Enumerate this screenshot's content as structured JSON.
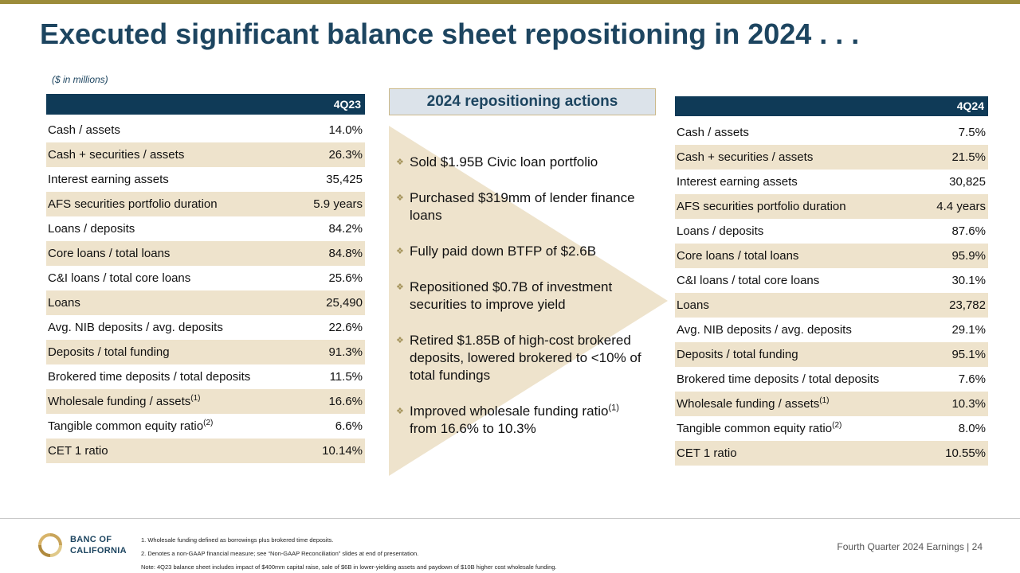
{
  "title": "Executed significant balance sheet repositioning in 2024 . . .",
  "units_note": "($ in millions)",
  "colors": {
    "header_navy": "#0F3A57",
    "row_shade": "#EEE3CC",
    "accent_gold": "#9C8C3A",
    "title_blue": "#1D4560"
  },
  "left_table": {
    "header": "4Q23",
    "rows": [
      {
        "label": "Cash / assets",
        "value": "14.0%"
      },
      {
        "label": "Cash + securities / assets",
        "value": "26.3%"
      },
      {
        "label": "Interest earning assets",
        "value": "35,425"
      },
      {
        "label": "AFS securities portfolio duration",
        "value": "5.9 years"
      },
      {
        "label": "Loans / deposits",
        "value": "84.2%"
      },
      {
        "label": "Core loans / total loans",
        "value": "84.8%"
      },
      {
        "label": "C&I loans / total core loans",
        "value": "25.6%"
      },
      {
        "label": "Loans",
        "value": "25,490"
      },
      {
        "label": "Avg. NIB deposits / avg. deposits",
        "value": "22.6%"
      },
      {
        "label": "Deposits / total funding",
        "value": "91.3%"
      },
      {
        "label": "Brokered time deposits / total deposits",
        "value": "11.5%"
      },
      {
        "label": "Wholesale funding / assets",
        "sup": "(1)",
        "value": "16.6%"
      },
      {
        "label": "Tangible common equity ratio",
        "sup": "(2)",
        "value": "6.6%"
      },
      {
        "label": "CET 1 ratio",
        "value": "10.14%"
      }
    ]
  },
  "right_table": {
    "header": "4Q24",
    "rows": [
      {
        "label": "Cash / assets",
        "value": "7.5%"
      },
      {
        "label": "Cash + securities / assets",
        "value": "21.5%"
      },
      {
        "label": "Interest earning assets",
        "value": "30,825"
      },
      {
        "label": "AFS securities portfolio duration",
        "value": "4.4 years"
      },
      {
        "label": "Loans / deposits",
        "value": "87.6%"
      },
      {
        "label": "Core loans / total loans",
        "value": "95.9%"
      },
      {
        "label": "C&I loans / total core loans",
        "value": "30.1%"
      },
      {
        "label": "Loans",
        "value": "23,782"
      },
      {
        "label": "Avg. NIB deposits / avg. deposits",
        "value": "29.1%"
      },
      {
        "label": "Deposits / total funding",
        "value": "95.1%"
      },
      {
        "label": "Brokered time deposits / total deposits",
        "value": "7.6%"
      },
      {
        "label": "Wholesale funding / assets",
        "sup": "(1)",
        "value": "10.3%"
      },
      {
        "label": "Tangible common equity ratio",
        "sup": "(2)",
        "value": "8.0%"
      },
      {
        "label": "CET 1 ratio",
        "value": "10.55%"
      }
    ]
  },
  "actions": {
    "heading": "2024 repositioning actions",
    "bullet_icon": "diamond-bullet-icon",
    "items": [
      {
        "text": "Sold $1.95B Civic loan portfolio"
      },
      {
        "text": "Purchased $319mm of lender finance loans"
      },
      {
        "text": "Fully paid down BTFP of $2.6B"
      },
      {
        "text": "Repositioned $0.7B of investment securities to improve yield"
      },
      {
        "text": "Retired $1.85B of high-cost brokered deposits, lowered brokered to <10% of total fundings"
      },
      {
        "text": "Improved wholesale funding ratio",
        "sup": "(1)",
        "text_after": "from 16.6% to 10.3%"
      }
    ]
  },
  "footer": {
    "logo_line1": "BANC OF",
    "logo_line2": "CALIFORNIA",
    "notes": [
      "1.  Wholesale funding defined as borrowings plus brokered time deposits.",
      "2.  Denotes a non-GAAP financial measure; see “Non-GAAP Reconciliation” slides at end of presentation.",
      "Note: 4Q23 balance sheet includes impact of $400mm capital raise, sale of $6B in lower-yielding assets and paydown of $10B higher cost wholesale funding."
    ],
    "page_label": "Fourth Quarter 2024 Earnings |",
    "page_number": "24"
  }
}
